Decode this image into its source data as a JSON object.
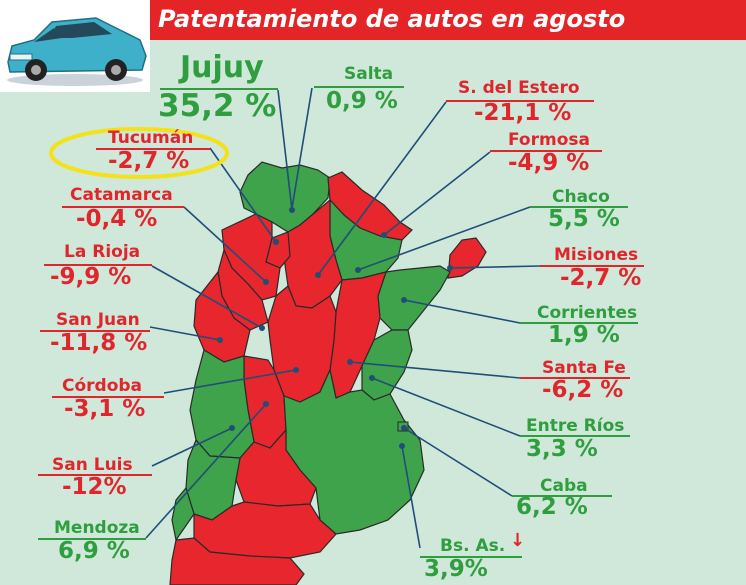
{
  "title": "Patentamiento de autos en agosto",
  "chart_data": {
    "type": "map",
    "regions": [
      {
        "name": "Jujuy",
        "value": "35,2 %",
        "change": 35.2,
        "status": "up"
      },
      {
        "name": "Salta",
        "value": "0,9 %",
        "change": 0.9,
        "status": "up"
      },
      {
        "name": "S. del Estero",
        "value": "-21,1 %",
        "change": -21.1,
        "status": "down"
      },
      {
        "name": "Formosa",
        "value": "-4,9 %",
        "change": -4.9,
        "status": "down"
      },
      {
        "name": "Chaco",
        "value": "5,5 %",
        "change": 5.5,
        "status": "up"
      },
      {
        "name": "Misiones",
        "value": "-2,7 %",
        "change": -2.7,
        "status": "down"
      },
      {
        "name": "Corrientes",
        "value": "1,9 %",
        "change": 1.9,
        "status": "up"
      },
      {
        "name": "Santa Fe",
        "value": "-6,2 %",
        "change": -6.2,
        "status": "down"
      },
      {
        "name": "Entre Ríos",
        "value": "3,3 %",
        "change": 3.3,
        "status": "up"
      },
      {
        "name": "Caba",
        "value": "6,2 %",
        "change": 6.2,
        "status": "up"
      },
      {
        "name": "Bs. As.",
        "value": "3,9%",
        "change": 3.9,
        "status": "up"
      },
      {
        "name": "Tucumán",
        "value": "-2,7 %",
        "change": -2.7,
        "status": "down"
      },
      {
        "name": "Catamarca",
        "value": "-0,4 %",
        "change": -0.4,
        "status": "down"
      },
      {
        "name": "La Rioja",
        "value": "-9,9 %",
        "change": -9.9,
        "status": "down"
      },
      {
        "name": "San Juan",
        "value": "-11,8 %",
        "change": -11.8,
        "status": "down"
      },
      {
        "name": "Córdoba",
        "value": "-3,1 %",
        "change": -3.1,
        "status": "down"
      },
      {
        "name": "San Luis",
        "value": "-12%",
        "change": -12,
        "status": "down"
      },
      {
        "name": "Mendoza",
        "value": "6,9 %",
        "change": 6.9,
        "status": "up"
      }
    ]
  },
  "colors": {
    "up": "#2f9e3f",
    "down": "#e0262c",
    "background": "#cfe8da",
    "title_bar": "#e52428",
    "highlight": "#f4e11a"
  },
  "icons": {
    "car": "car-icon",
    "arrow": "down-arrow-icon"
  }
}
